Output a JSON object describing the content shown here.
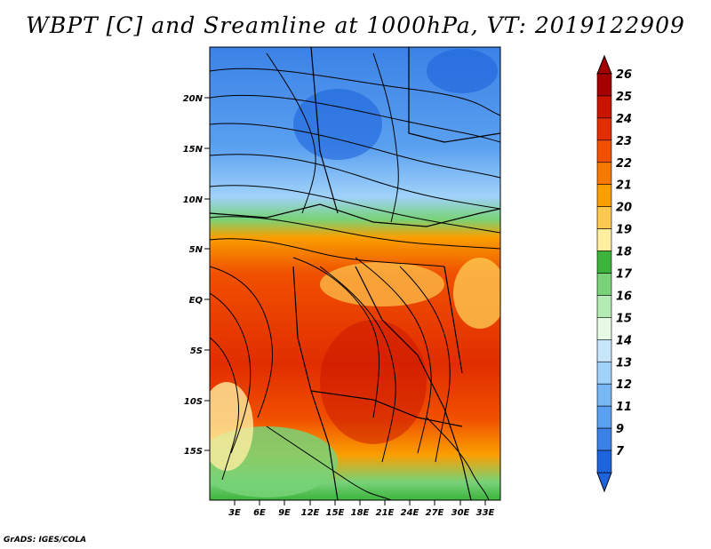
{
  "title": "WBPT [C] and Sreamline at 1000hPa, VT: 2019122909",
  "footer": "GrADS: IGES/COLA",
  "lat_labels": [
    "20N",
    "15N",
    "10N",
    "5N",
    "EQ",
    "5S",
    "10S",
    "15S"
  ],
  "lon_labels": [
    "3E",
    "6E",
    "9E",
    "12E",
    "15E",
    "18E",
    "21E",
    "24E",
    "27E",
    "30E",
    "33E"
  ],
  "colorbar": {
    "labels": [
      "26",
      "25",
      "24",
      "23",
      "22",
      "21",
      "20",
      "19",
      "18",
      "17",
      "16",
      "15",
      "14",
      "13",
      "12",
      "11",
      "9",
      "7"
    ],
    "colors": [
      "#a50000",
      "#c81400",
      "#e12d00",
      "#f05000",
      "#f57800",
      "#fa9f00",
      "#fcc850",
      "#fdeea0",
      "#3cb43c",
      "#78d278",
      "#b4eab4",
      "#e6fae6",
      "#c8e6fa",
      "#a0d2fa",
      "#78b9f5",
      "#5aa0f0",
      "#3c82e6",
      "#1e64dc"
    ]
  }
}
